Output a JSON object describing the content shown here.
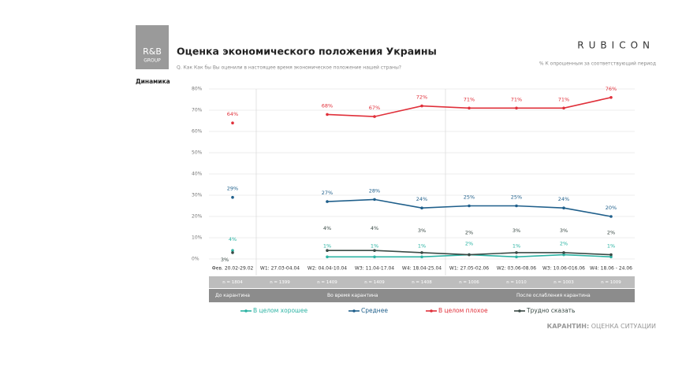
{
  "logo": {
    "line1": "R&B",
    "line2": "GROUP"
  },
  "brand": "RUBICON",
  "section": "Динамика",
  "note": "% К опрошенным за соответствующий период",
  "footer": {
    "bold": "КАРАНТИН:",
    "light": "ОЦЕНКА СИТУАЦИИ"
  },
  "chart_data": {
    "type": "line",
    "title": "Оценка экономического положения Украины",
    "subtitle": "Q. Как Как бы Вы оценили в настоящее время экономическое положение нашей страны?",
    "categories": [
      "Фев. 20.02-29.02",
      "W1: 27.03-04.04",
      "W2: 04.04-10.04",
      "W3: 11.04-17.04",
      "W4: 18.04-25.04",
      "W1: 27.05-02.06",
      "W2: 03.06-08.06",
      "W3: 10.06-016.06",
      "W4: 18.06 - 24.06"
    ],
    "sample_sizes": [
      "n = 1804",
      "n = 1399",
      "n = 1409",
      "n = 1409",
      "n = 1408",
      "n = 1006",
      "n = 1010",
      "n = 1003",
      "n = 1009"
    ],
    "periods": [
      "До карантина",
      "Во время карантина",
      "После ослабления карантина"
    ],
    "ylim": [
      0,
      80
    ],
    "yticks": [
      {
        "value": 0,
        "label": "0%"
      },
      {
        "value": 10,
        "label": "10%"
      },
      {
        "value": 20,
        "label": "20%"
      },
      {
        "value": 30,
        "label": "30%"
      },
      {
        "value": 40,
        "label": "40%"
      },
      {
        "value": 50,
        "label": "50%"
      },
      {
        "value": 60,
        "label": "60%"
      },
      {
        "value": 70,
        "label": "70%"
      },
      {
        "value": 80,
        "label": "80%"
      }
    ],
    "grid": true,
    "series": [
      {
        "name": "В целом хорошее",
        "color": "#2bb3a3",
        "values": [
          4,
          null,
          1,
          1,
          1,
          2,
          1,
          2,
          1
        ],
        "value_labels": [
          "4%",
          null,
          "1%",
          "1%",
          "1%",
          "2%",
          "1%",
          "2%",
          "1%"
        ]
      },
      {
        "name": "Среднее",
        "color": "#1f5f8b",
        "values": [
          29,
          null,
          27,
          28,
          24,
          25,
          25,
          24,
          20
        ],
        "value_labels": [
          "29%",
          null,
          "27%",
          "28%",
          "24%",
          "25%",
          "25%",
          "24%",
          "20%"
        ]
      },
      {
        "name": "В целом плохое",
        "color": "#e0303a",
        "values": [
          64,
          null,
          68,
          67,
          72,
          71,
          71,
          71,
          76
        ],
        "value_labels": [
          "64%",
          null,
          "68%",
          "67%",
          "72%",
          "71%",
          "71%",
          "71%",
          "76%"
        ]
      },
      {
        "name": "Трудно сказать",
        "color": "#3a4a45",
        "values": [
          3,
          null,
          4,
          4,
          3,
          2,
          3,
          3,
          2
        ],
        "value_labels": [
          "3%",
          null,
          "4%",
          "4%",
          "3%",
          "2%",
          "3%",
          "3%",
          "2%"
        ]
      }
    ]
  }
}
